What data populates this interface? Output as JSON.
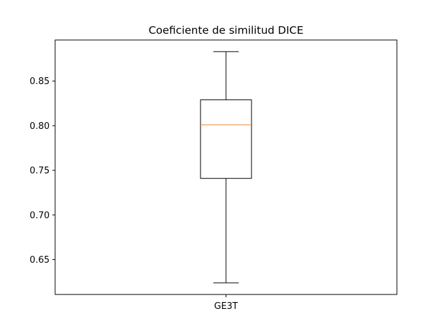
{
  "chart_data": {
    "type": "boxplot",
    "title": "Coeficiente de similitud DICE",
    "categories": [
      "GE3T"
    ],
    "boxes": [
      {
        "category": "GE3T",
        "whisker_low": 0.624,
        "q1": 0.741,
        "median": 0.801,
        "q3": 0.829,
        "whisker_high": 0.883
      }
    ],
    "yticks": [
      0.65,
      0.7,
      0.75,
      0.8,
      0.85
    ],
    "ytick_labels": [
      "0.65",
      "0.70",
      "0.75",
      "0.80",
      "0.85"
    ],
    "ylim": [
      0.611,
      0.896
    ],
    "grid": false,
    "colors": {
      "box": "#000000",
      "median": "#ff7f0e",
      "whisker": "#000000"
    }
  }
}
